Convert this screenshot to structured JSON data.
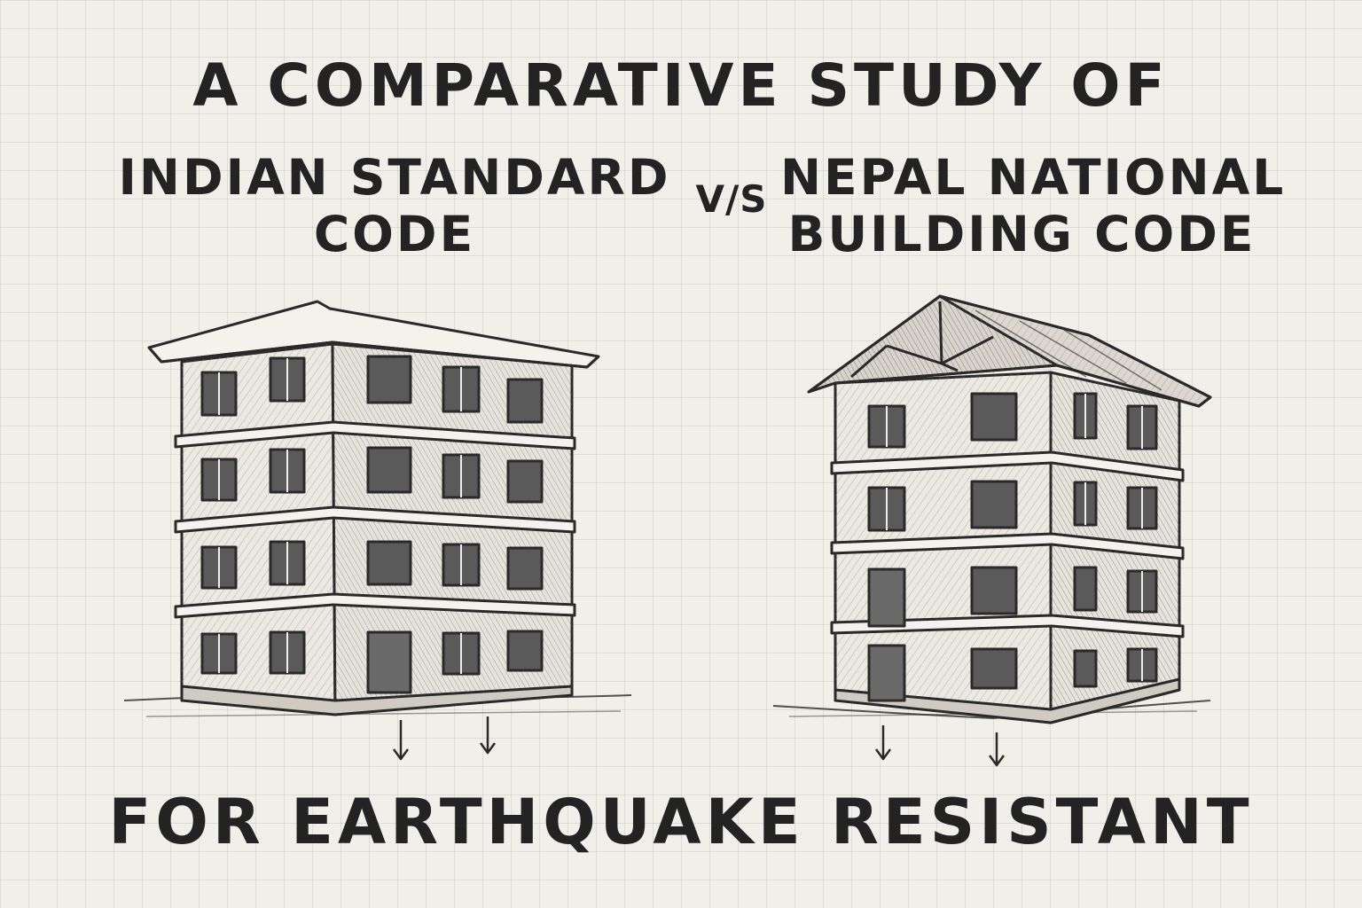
{
  "heading": {
    "title": "A COMPARATIVE STUDY OF",
    "left_line1": "INDIAN STANDARD",
    "left_line2": "CODE",
    "vs": "V/S",
    "right_line1": "NEPAL NATIONAL",
    "right_line2": "BUILDING CODE"
  },
  "footer": {
    "text": "FOR EARTHQUAKE RESISTANT"
  },
  "illustration": {
    "left_building": {
      "roof": "flat",
      "storeys": 4,
      "load_arrows": 2
    },
    "right_building": {
      "roof": "pitched",
      "storeys": 4,
      "load_arrows": 2
    },
    "colors": {
      "ink": "#2a2a2a",
      "paper": "#f1efe9",
      "window": "#5a5a5a"
    }
  }
}
